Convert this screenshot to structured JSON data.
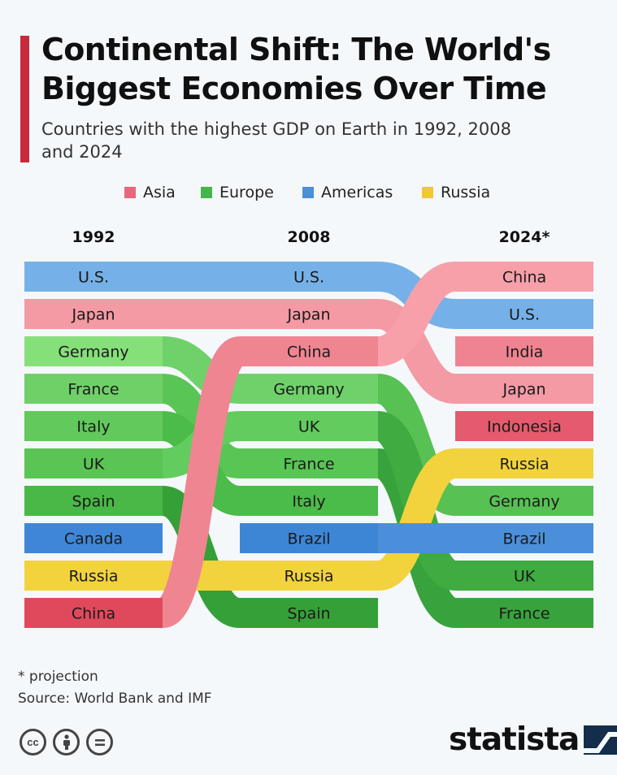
{
  "header": {
    "title": "Continental Shift: The World's Biggest Economies Over Time",
    "subtitle": "Countries with the highest GDP on Earth in 1992, 2008 and 2024"
  },
  "legend": [
    {
      "label": "Asia",
      "color": "#e8677a"
    },
    {
      "label": "Europe",
      "color": "#45b649"
    },
    {
      "label": "Americas",
      "color": "#4a90d9"
    },
    {
      "label": "Russia",
      "color": "#f0c832"
    }
  ],
  "years": [
    "1992",
    "2008",
    "2024*"
  ],
  "footnote": "* projection",
  "source": "Source: World Bank and IMF",
  "brand": "statista",
  "license_icons": [
    "cc-icon",
    "attribution-icon",
    "no-derivatives-icon"
  ],
  "chart_data": {
    "type": "bump",
    "x": [
      "1992",
      "2008",
      "2024*"
    ],
    "series": [
      {
        "name": "U.S.",
        "region": "Americas",
        "ranks": [
          1,
          1,
          2
        ],
        "colors": [
          "#75b1e8",
          "#75b1e8",
          "#75b1e8"
        ]
      },
      {
        "name": "Japan",
        "region": "Asia",
        "ranks": [
          2,
          2,
          4
        ],
        "colors": [
          "#f39aa4",
          "#f39aa4",
          "#f39aa4"
        ]
      },
      {
        "name": "Germany",
        "region": "Europe",
        "ranks": [
          3,
          4,
          7
        ],
        "colors": [
          "#86e07a",
          "#6fd16a",
          "#57c153"
        ]
      },
      {
        "name": "France",
        "region": "Europe",
        "ranks": [
          4,
          6,
          10
        ],
        "colors": [
          "#70d068",
          "#59c555",
          "#38a33c"
        ]
      },
      {
        "name": "Italy",
        "region": "Europe",
        "ranks": [
          5,
          7,
          null
        ],
        "colors": [
          "#62c95c",
          "#4bbb49"
        ]
      },
      {
        "name": "UK",
        "region": "Europe",
        "ranks": [
          6,
          5,
          9
        ],
        "colors": [
          "#5ac454",
          "#63cc5e",
          "#3fab40"
        ]
      },
      {
        "name": "Spain",
        "region": "Europe",
        "ranks": [
          7,
          10,
          null
        ],
        "colors": [
          "#49b846",
          "#36a038"
        ]
      },
      {
        "name": "Canada",
        "region": "Americas",
        "ranks": [
          8,
          null,
          null
        ],
        "colors": [
          "#3f86d8"
        ]
      },
      {
        "name": "Russia",
        "region": "Russia",
        "ranks": [
          9,
          9,
          6
        ],
        "colors": [
          "#f2d33d",
          "#f2d33d",
          "#f2d33d"
        ]
      },
      {
        "name": "China",
        "region": "Asia",
        "ranks": [
          10,
          3,
          1
        ],
        "colors": [
          "#e0495c",
          "#f08592",
          "#f7a0aa"
        ]
      },
      {
        "name": "Brazil",
        "region": "Americas",
        "ranks": [
          null,
          8,
          8
        ],
        "colors": [
          "#3d86d6",
          "#4b8fdb"
        ]
      },
      {
        "name": "India",
        "region": "Asia",
        "ranks": [
          null,
          null,
          3
        ],
        "colors": [
          "#f08391"
        ]
      },
      {
        "name": "Indonesia",
        "region": "Asia",
        "ranks": [
          null,
          null,
          5
        ],
        "colors": [
          "#e55a6c"
        ]
      }
    ]
  }
}
